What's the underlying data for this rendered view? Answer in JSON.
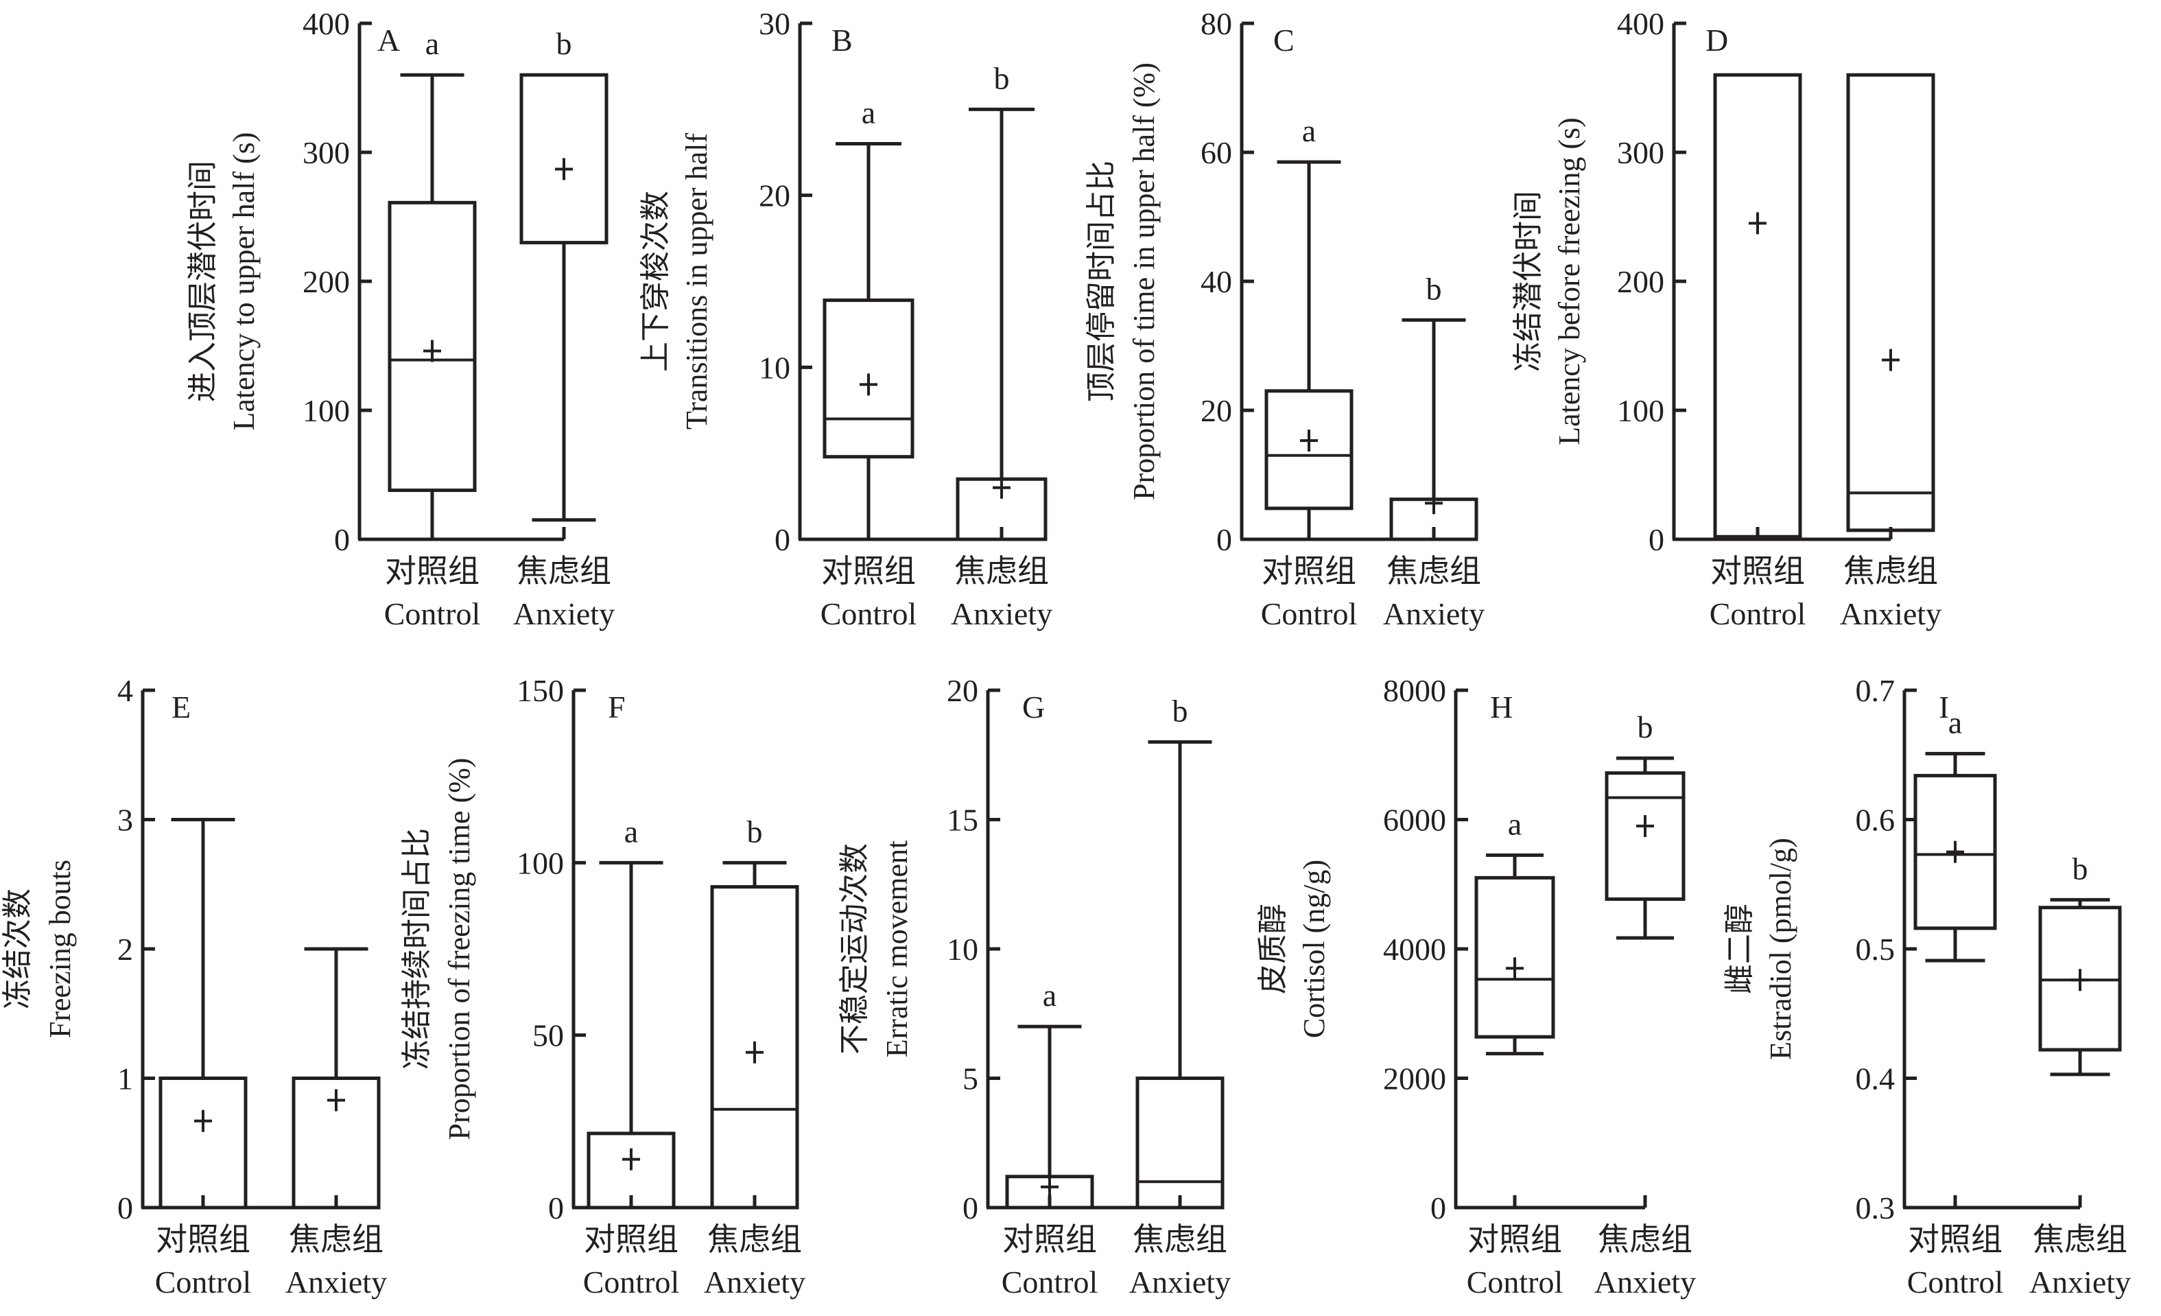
{
  "figure": {
    "group_labels": [
      {
        "zh": "对照组",
        "en": "Control"
      },
      {
        "zh": "焦虑组",
        "en": "Anxiety"
      }
    ],
    "colors": {
      "ink": "#231f20",
      "background": "#ffffff"
    }
  },
  "chart_data": [
    {
      "id": "A",
      "type": "box",
      "panel_label": "A",
      "ylabel_zh": "进入顶层潜伏时间",
      "ylabel_en": "Latency to upper half (s)",
      "ylim": [
        0,
        400
      ],
      "yticks": [
        0,
        100,
        200,
        300,
        400
      ],
      "categories": [
        "Control",
        "Anxiety"
      ],
      "boxes": [
        {
          "group": "Control",
          "whisker_low": 0,
          "q1": 38,
          "median": 139,
          "q3": 261,
          "whisker_high": 360,
          "mean": 146,
          "sig": "a"
        },
        {
          "group": "Anxiety",
          "whisker_low": 15,
          "q1": 230,
          "median": 360,
          "q3": 360,
          "whisker_high": 360,
          "mean": 287,
          "sig": "b"
        }
      ]
    },
    {
      "id": "B",
      "type": "box",
      "panel_label": "B",
      "ylabel_zh": "上下穿梭次数",
      "ylabel_en": "Transitions in upper half",
      "ylim": [
        0,
        30
      ],
      "yticks": [
        0,
        10,
        20,
        30
      ],
      "categories": [
        "Control",
        "Anxiety"
      ],
      "boxes": [
        {
          "group": "Control",
          "whisker_low": 0,
          "q1": 4.8,
          "median": 7,
          "q3": 13.9,
          "whisker_high": 23,
          "mean": 9,
          "sig": "a"
        },
        {
          "group": "Anxiety",
          "whisker_low": 0,
          "q1": 0,
          "median": 0,
          "q3": 3.5,
          "whisker_high": 25,
          "mean": 3,
          "sig": "b"
        }
      ]
    },
    {
      "id": "C",
      "type": "box",
      "panel_label": "C",
      "ylabel_zh": "顶层停留时间占比",
      "ylabel_en": "Proportion of time in upper half (%)",
      "ylim": [
        0,
        80
      ],
      "yticks": [
        0,
        20,
        40,
        60,
        80
      ],
      "categories": [
        "Control",
        "Anxiety"
      ],
      "boxes": [
        {
          "group": "Control",
          "whisker_low": 0,
          "q1": 4.8,
          "median": 13,
          "q3": 23,
          "whisker_high": 58.5,
          "mean": 15.3,
          "sig": "a"
        },
        {
          "group": "Anxiety",
          "whisker_low": 0,
          "q1": 0,
          "median": 0,
          "q3": 6.2,
          "whisker_high": 34,
          "mean": 5.6,
          "sig": "b"
        }
      ]
    },
    {
      "id": "D",
      "type": "box",
      "panel_label": "D",
      "ylabel_zh": "冻结潜伏时间",
      "ylabel_en": "Latency before freezing (s)",
      "ylim": [
        0,
        400
      ],
      "yticks": [
        0,
        100,
        200,
        300,
        400
      ],
      "categories": [
        "Control",
        "Anxiety"
      ],
      "boxes": [
        {
          "group": "Control",
          "whisker_low": 0,
          "q1": 2,
          "median": 360,
          "q3": 360,
          "whisker_high": 360,
          "mean": 245,
          "sig": ""
        },
        {
          "group": "Anxiety",
          "whisker_low": 0,
          "q1": 7,
          "median": 36,
          "q3": 360,
          "whisker_high": 360,
          "mean": 139,
          "sig": ""
        }
      ]
    },
    {
      "id": "E",
      "type": "box",
      "panel_label": "E",
      "ylabel_zh": "冻结次数",
      "ylabel_en": "Freezing bouts",
      "ylim": [
        0,
        4
      ],
      "yticks": [
        0,
        1,
        2,
        3,
        4
      ],
      "categories": [
        "Control",
        "Anxiety"
      ],
      "boxes": [
        {
          "group": "Control",
          "whisker_low": 0,
          "q1": 0,
          "median": 0,
          "q3": 1,
          "whisker_high": 3,
          "mean": 0.67,
          "sig": ""
        },
        {
          "group": "Anxiety",
          "whisker_low": 0,
          "q1": 0,
          "median": 1,
          "q3": 1,
          "whisker_high": 2,
          "mean": 0.83,
          "sig": ""
        }
      ]
    },
    {
      "id": "F",
      "type": "box",
      "panel_label": "F",
      "ylabel_zh": "冻结持续时间占比",
      "ylabel_en": "Proportion of freezing time  (%)",
      "ylim": [
        0,
        150
      ],
      "yticks": [
        0,
        50,
        100,
        150
      ],
      "categories": [
        "Control",
        "Anxiety"
      ],
      "boxes": [
        {
          "group": "Control",
          "whisker_low": 0,
          "q1": 0,
          "median": 0,
          "q3": 21.5,
          "whisker_high": 100,
          "mean": 14,
          "sig": "a"
        },
        {
          "group": "Anxiety",
          "whisker_low": 0,
          "q1": 0,
          "median": 28.5,
          "q3": 93,
          "whisker_high": 100,
          "mean": 45,
          "sig": "b"
        }
      ]
    },
    {
      "id": "G",
      "type": "box",
      "panel_label": "G",
      "ylabel_zh": "不稳定运动次数",
      "ylabel_en": "Erratic movement",
      "ylim": [
        0,
        20
      ],
      "yticks": [
        0,
        5,
        10,
        15,
        20
      ],
      "categories": [
        "Control",
        "Anxiety"
      ],
      "boxes": [
        {
          "group": "Control",
          "whisker_low": 0,
          "q1": 0,
          "median": 0,
          "q3": 1.2,
          "whisker_high": 7,
          "mean": 0.8,
          "sig": "a"
        },
        {
          "group": "Anxiety",
          "whisker_low": 0,
          "q1": 0,
          "median": 1,
          "q3": 5,
          "whisker_high": 18,
          "mean": null,
          "sig": "b"
        }
      ]
    },
    {
      "id": "H",
      "type": "box",
      "panel_label": "H",
      "ylabel_zh": "皮质醇",
      "ylabel_en": "Cortisol (ng/g)",
      "ylim": [
        0,
        8000
      ],
      "yticks": [
        0,
        2000,
        4000,
        6000,
        8000
      ],
      "categories": [
        "Control",
        "Anxiety"
      ],
      "boxes": [
        {
          "group": "Control",
          "whisker_low": 2380,
          "q1": 2640,
          "median": 3530,
          "q3": 5100,
          "whisker_high": 5450,
          "mean": 3700,
          "sig": "a"
        },
        {
          "group": "Anxiety",
          "whisker_low": 4170,
          "q1": 4770,
          "median": 6340,
          "q3": 6720,
          "whisker_high": 6950,
          "mean": 5900,
          "sig": "b"
        }
      ]
    },
    {
      "id": "I",
      "type": "box",
      "panel_label": "I",
      "ylabel_zh": "雌二醇",
      "ylabel_en": "Estradiol (pmol/g)",
      "ylim": [
        0.3,
        0.7
      ],
      "yticks": [
        0.3,
        0.4,
        0.5,
        0.6,
        0.7
      ],
      "categories": [
        "Control",
        "Anxiety"
      ],
      "boxes": [
        {
          "group": "Control",
          "whisker_low": 0.491,
          "q1": 0.516,
          "median": 0.573,
          "q3": 0.634,
          "whisker_high": 0.651,
          "mean": 0.575,
          "sig": "a"
        },
        {
          "group": "Anxiety",
          "whisker_low": 0.403,
          "q1": 0.422,
          "median": 0.476,
          "q3": 0.532,
          "whisker_high": 0.538,
          "mean": 0.476,
          "sig": "b"
        }
      ]
    }
  ]
}
